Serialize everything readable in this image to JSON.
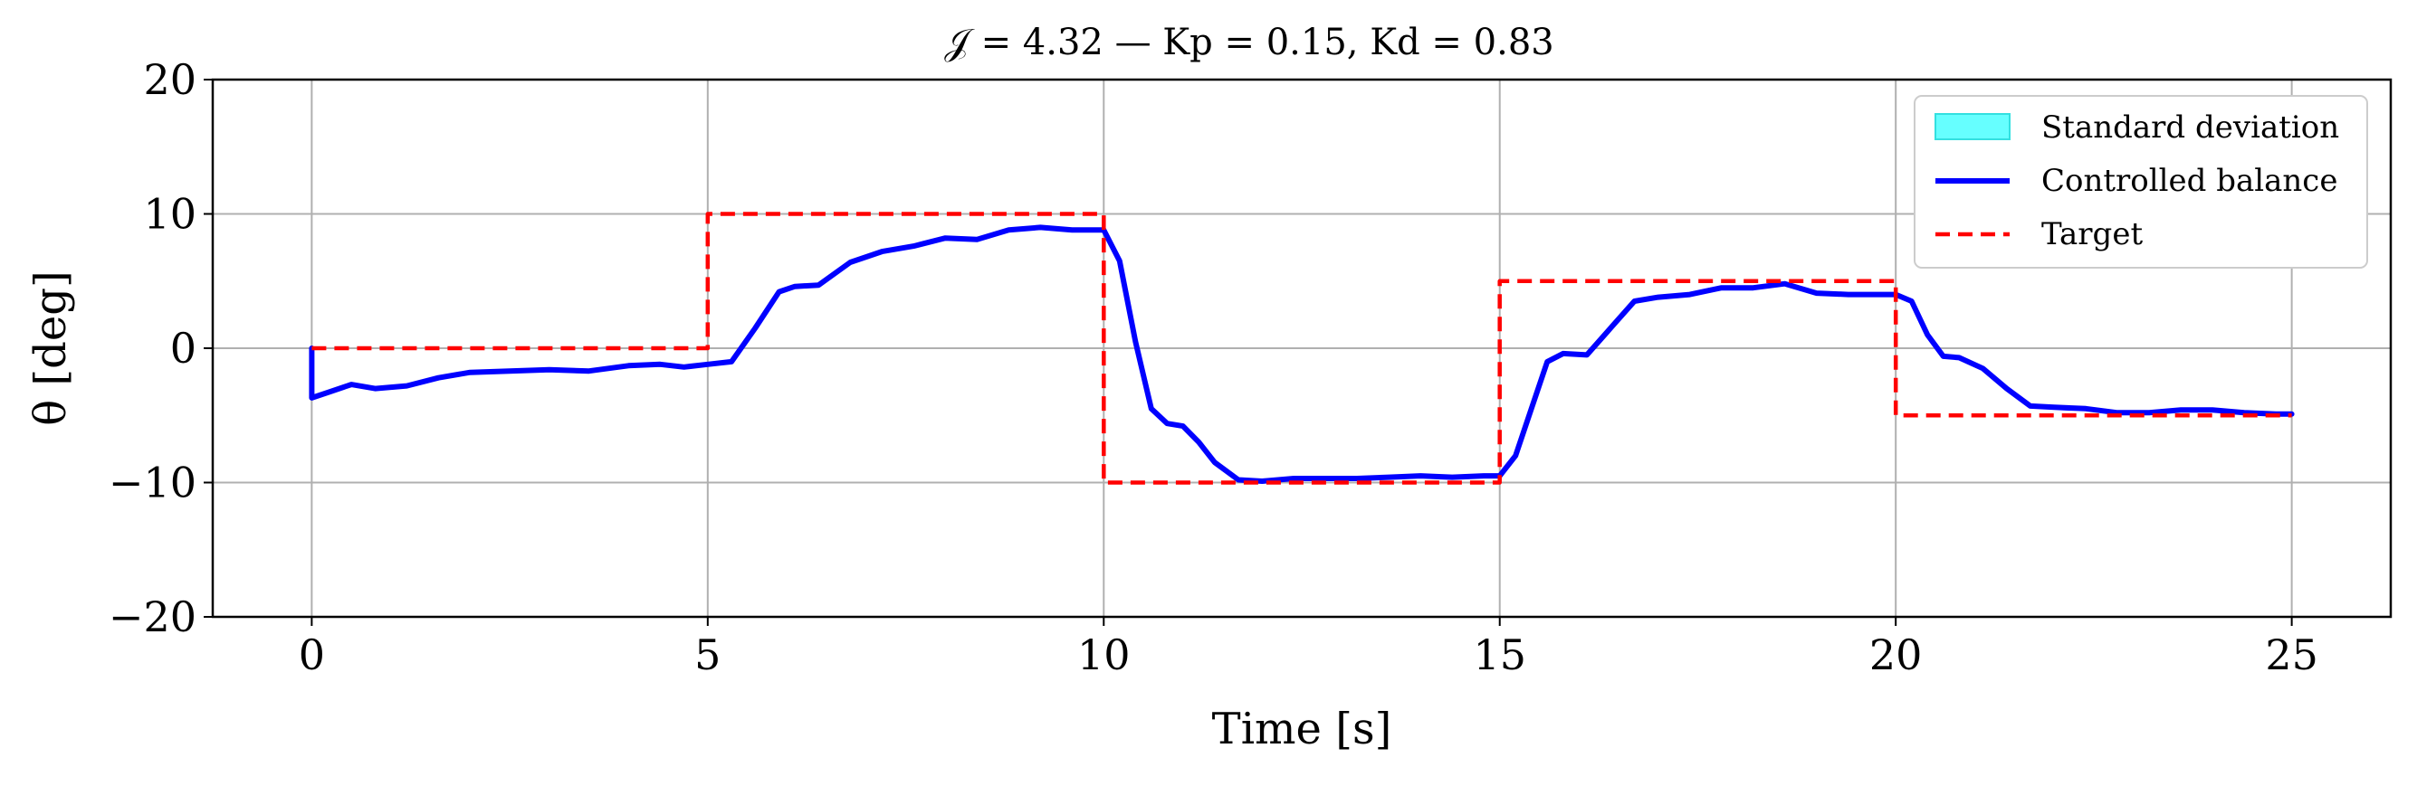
{
  "chart_data": {
    "type": "line",
    "title": "𝒥 = 4.32 — Kp = 0.15, Kd = 0.83",
    "xlabel": "Time [s]",
    "ylabel": "θ [deg]",
    "xlim": [
      -1.25,
      26.25
    ],
    "ylim": [
      -20,
      20
    ],
    "xticks": [
      0,
      5,
      10,
      15,
      20,
      25
    ],
    "xtick_labels": [
      "0",
      "5",
      "10",
      "15",
      "20",
      "25"
    ],
    "yticks": [
      -20,
      -10,
      0,
      10,
      20
    ],
    "ytick_labels": [
      "−20",
      "−10",
      "0",
      "10",
      "20"
    ],
    "grid": true,
    "legend_position": "top-right",
    "legend": [
      {
        "label": "Standard deviation",
        "color": "#66ffff",
        "style": "patch"
      },
      {
        "label": "Controlled balance",
        "color": "#0000ff",
        "style": "solid"
      },
      {
        "label": "Target",
        "color": "#ff0000",
        "style": "dashed"
      }
    ],
    "series": [
      {
        "name": "Controlled balance",
        "color": "#0000ff",
        "x": [
          0,
          0,
          0.2,
          0.5,
          0.8,
          1.2,
          1.6,
          2.0,
          2.5,
          3.0,
          3.5,
          4.0,
          4.4,
          4.7,
          5.0,
          5.3,
          5.6,
          5.9,
          6.1,
          6.4,
          6.8,
          7.2,
          7.6,
          8.0,
          8.4,
          8.8,
          9.2,
          9.6,
          10.0,
          10.2,
          10.4,
          10.6,
          10.8,
          11.0,
          11.2,
          11.4,
          11.7,
          12.0,
          12.4,
          12.8,
          13.2,
          13.6,
          14.0,
          14.4,
          14.8,
          15.0,
          15.2,
          15.4,
          15.6,
          15.8,
          16.1,
          16.4,
          16.7,
          17.0,
          17.4,
          17.8,
          18.2,
          18.6,
          19.0,
          19.4,
          19.8,
          20.0,
          20.2,
          20.4,
          20.6,
          20.8,
          21.1,
          21.4,
          21.7,
          22.0,
          22.4,
          22.8,
          23.2,
          23.6,
          24.0,
          24.4,
          24.8,
          25.0
        ],
        "y": [
          0,
          -3.7,
          -3.3,
          -2.7,
          -3.0,
          -2.8,
          -2.2,
          -1.8,
          -1.7,
          -1.6,
          -1.7,
          -1.3,
          -1.2,
          -1.4,
          -1.2,
          -1.0,
          1.5,
          4.2,
          4.6,
          4.7,
          6.4,
          7.2,
          7.6,
          8.2,
          8.1,
          8.8,
          9.0,
          8.8,
          8.8,
          6.5,
          0.5,
          -4.5,
          -5.6,
          -5.8,
          -7.0,
          -8.5,
          -9.8,
          -9.9,
          -9.7,
          -9.7,
          -9.7,
          -9.6,
          -9.5,
          -9.6,
          -9.5,
          -9.5,
          -8.0,
          -4.5,
          -1.0,
          -0.4,
          -0.5,
          1.5,
          3.5,
          3.8,
          4.0,
          4.5,
          4.5,
          4.8,
          4.1,
          4.0,
          4.0,
          4.0,
          3.5,
          1.0,
          -0.6,
          -0.7,
          -1.5,
          -3.0,
          -4.3,
          -4.4,
          -4.5,
          -4.8,
          -4.8,
          -4.6,
          -4.6,
          -4.8,
          -4.9,
          -4.9
        ]
      },
      {
        "name": "Target",
        "color": "#ff0000",
        "x": [
          0,
          5,
          5,
          10,
          10,
          15,
          15,
          20,
          20,
          25
        ],
        "y": [
          0,
          0,
          10,
          10,
          -10,
          -10,
          5,
          5,
          -5,
          -5
        ]
      }
    ]
  }
}
